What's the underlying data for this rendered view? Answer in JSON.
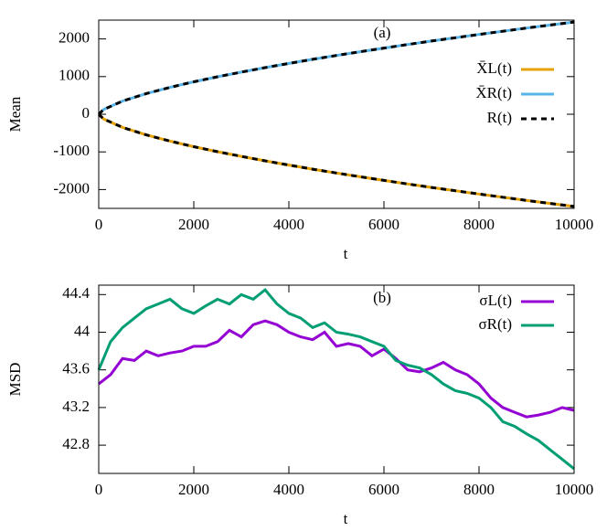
{
  "chart_data": [
    {
      "type": "line",
      "annotation": "(a)",
      "xlabel": "t",
      "ylabel": "Mean",
      "x": [
        0,
        100,
        500,
        1000,
        1500,
        2000,
        2500,
        3000,
        3500,
        4000,
        4500,
        5000,
        5500,
        6000,
        6500,
        7000,
        7500,
        8000,
        8500,
        9000,
        9500,
        10000
      ],
      "xlim": [
        0,
        10000
      ],
      "xticks": [
        0,
        2000,
        4000,
        6000,
        8000,
        10000
      ],
      "ylim": [
        -2500,
        2500
      ],
      "yticks": [
        -2000,
        -1000,
        0,
        1000,
        2000
      ],
      "legend": "right",
      "series": [
        {
          "name": "X̄L(t)",
          "color": "#e6a000",
          "dash": false,
          "legend": true,
          "values": [
            0,
            -123,
            -350,
            -548,
            -714,
            -861,
            -995,
            -1120,
            -1238,
            -1350,
            -1458,
            -1561,
            -1661,
            -1758,
            -1852,
            -1943,
            -2032,
            -2119,
            -2205,
            -2288,
            -2370,
            -2450
          ]
        },
        {
          "name": "X̄R(t)",
          "color": "#56b4e9",
          "dash": false,
          "legend": true,
          "values": [
            0,
            123,
            350,
            548,
            714,
            861,
            995,
            1120,
            1238,
            1350,
            1458,
            1561,
            1661,
            1758,
            1852,
            1943,
            2032,
            2119,
            2205,
            2288,
            2370,
            2450
          ]
        },
        {
          "name": "R(t)",
          "color": "#000000",
          "dash": true,
          "legend": true,
          "values": [
            0,
            123,
            350,
            548,
            714,
            861,
            995,
            1120,
            1238,
            1350,
            1458,
            1561,
            1661,
            1758,
            1852,
            1943,
            2032,
            2119,
            2205,
            2288,
            2370,
            2450
          ]
        },
        {
          "name": "R(t)",
          "color": "#000000",
          "dash": true,
          "legend": false,
          "values": [
            0,
            -123,
            -350,
            -548,
            -714,
            -861,
            -995,
            -1120,
            -1238,
            -1350,
            -1458,
            -1561,
            -1661,
            -1758,
            -1852,
            -1943,
            -2032,
            -2119,
            -2205,
            -2288,
            -2370,
            -2450
          ]
        }
      ]
    },
    {
      "type": "line",
      "annotation": "(b)",
      "xlabel": "t",
      "ylabel": "MSD",
      "x": [
        0,
        250,
        500,
        750,
        1000,
        1250,
        1500,
        1750,
        2000,
        2250,
        2500,
        2750,
        3000,
        3250,
        3500,
        3750,
        4000,
        4250,
        4500,
        4750,
        5000,
        5250,
        5500,
        5750,
        6000,
        6250,
        6500,
        6750,
        7000,
        7250,
        7500,
        7750,
        8000,
        8250,
        8500,
        8750,
        9000,
        9250,
        9500,
        9750,
        10000
      ],
      "xlim": [
        0,
        10000
      ],
      "xticks": [
        0,
        2000,
        4000,
        6000,
        8000,
        10000
      ],
      "ylim": [
        42.5,
        44.5
      ],
      "yticks": [
        42.8,
        43.2,
        43.6,
        44,
        44.4
      ],
      "legend": "top right",
      "series": [
        {
          "name": "σL(t)",
          "color": "#9400d3",
          "dash": false,
          "legend": true,
          "values": [
            43.45,
            43.55,
            43.72,
            43.7,
            43.8,
            43.75,
            43.78,
            43.8,
            43.85,
            43.85,
            43.9,
            44.02,
            43.95,
            44.08,
            44.12,
            44.08,
            44.0,
            43.95,
            43.92,
            44.0,
            43.85,
            43.88,
            43.85,
            43.75,
            43.82,
            43.72,
            43.6,
            43.58,
            43.62,
            43.68,
            43.6,
            43.55,
            43.45,
            43.3,
            43.2,
            43.15,
            43.1,
            43.12,
            43.15,
            43.2,
            43.17
          ]
        },
        {
          "name": "σR(t)",
          "color": "#009e73",
          "dash": false,
          "legend": true,
          "values": [
            43.6,
            43.9,
            44.05,
            44.15,
            44.25,
            44.3,
            44.35,
            44.25,
            44.2,
            44.28,
            44.35,
            44.3,
            44.4,
            44.35,
            44.45,
            44.3,
            44.2,
            44.15,
            44.05,
            44.1,
            44.0,
            43.98,
            43.95,
            43.9,
            43.85,
            43.7,
            43.65,
            43.62,
            43.55,
            43.45,
            43.38,
            43.35,
            43.3,
            43.2,
            43.05,
            43.0,
            42.92,
            42.85,
            42.75,
            42.65,
            42.55
          ]
        }
      ]
    }
  ]
}
